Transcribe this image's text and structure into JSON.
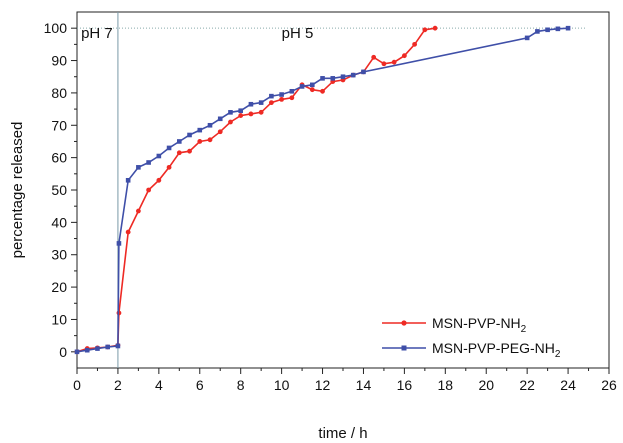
{
  "chart_data": {
    "type": "line",
    "xlabel": "time / h",
    "ylabel": "percentage released",
    "xlim": [
      0,
      26
    ],
    "ylim": [
      -5,
      105
    ],
    "xticks": [
      0,
      2,
      4,
      6,
      8,
      10,
      12,
      14,
      16,
      18,
      20,
      22,
      24,
      26
    ],
    "yticks": [
      0,
      10,
      20,
      30,
      40,
      50,
      60,
      70,
      80,
      90,
      100
    ],
    "grid": false,
    "legend_position": "bottom-right",
    "reference_lines": {
      "vertical_x": 2,
      "horizontal_y": 100
    },
    "annotations": [
      {
        "text": "pH 7",
        "x": 0.2,
        "y": 97
      },
      {
        "text": "pH 5",
        "x": 10,
        "y": 97
      }
    ],
    "series": [
      {
        "name": "MSN-PVP-NH2",
        "name_base": "MSN-PVP-NH",
        "name_sub": "2",
        "color": "#ee2a24",
        "marker": "circle",
        "x": [
          0,
          0.5,
          1,
          1.5,
          2,
          2.05,
          2.5,
          3,
          3.5,
          4,
          4.5,
          5,
          5.5,
          6,
          6.5,
          7,
          7.5,
          8,
          8.5,
          9,
          9.5,
          10,
          10.5,
          11,
          11.5,
          12,
          12.5,
          13,
          13.5,
          14,
          14.5,
          15,
          15.5,
          16,
          16.5,
          17,
          17.5
        ],
        "y": [
          0,
          1,
          1.2,
          1.5,
          2,
          12,
          37,
          43.5,
          50,
          53,
          57,
          61.5,
          62,
          65,
          65.5,
          68,
          71,
          73,
          73.5,
          74,
          77,
          78,
          78.5,
          82.5,
          81,
          80.5,
          83.5,
          84,
          85.5,
          86.5,
          91,
          89,
          89.5,
          91.5,
          95,
          99.5,
          100
        ]
      },
      {
        "name": "MSN-PVP-PEG-NH2",
        "name_base": "MSN-PVP-PEG-NH",
        "name_sub": "2",
        "color": "#3f4fa8",
        "marker": "square",
        "x": [
          0,
          0.5,
          1,
          1.5,
          2,
          2.05,
          2.5,
          3,
          3.5,
          4,
          4.5,
          5,
          5.5,
          6,
          6.5,
          7,
          7.5,
          8,
          8.5,
          9,
          9.5,
          10,
          10.5,
          11,
          11.5,
          12,
          12.5,
          13,
          13.5,
          14,
          22,
          22.5,
          23,
          23.5,
          24
        ],
        "y": [
          0,
          0.5,
          1,
          1.5,
          1.8,
          33.5,
          53,
          57,
          58.5,
          60.5,
          63,
          65,
          67,
          68.5,
          70,
          72,
          74,
          74.5,
          76.5,
          77,
          79,
          79.5,
          80.5,
          82,
          82.5,
          84.5,
          84.5,
          85,
          85.5,
          86.5,
          97,
          99,
          99.5,
          99.8,
          100
        ]
      }
    ]
  }
}
